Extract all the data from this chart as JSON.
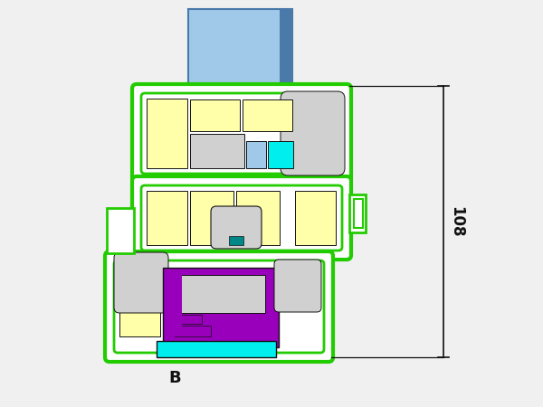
{
  "bg_color": "#f0f0f0",
  "green": "#22cc00",
  "yellow": "#ffffaa",
  "gray": "#b0b0b0",
  "light_gray": "#d0d0d0",
  "cyan": "#00eeee",
  "purple": "#9900bb",
  "blue_glass": "#a0c8e8",
  "blue_dark": "#4a7aaa",
  "black": "#111111",
  "white": "#ffffff",
  "label_B": "B",
  "dim_108": "108"
}
